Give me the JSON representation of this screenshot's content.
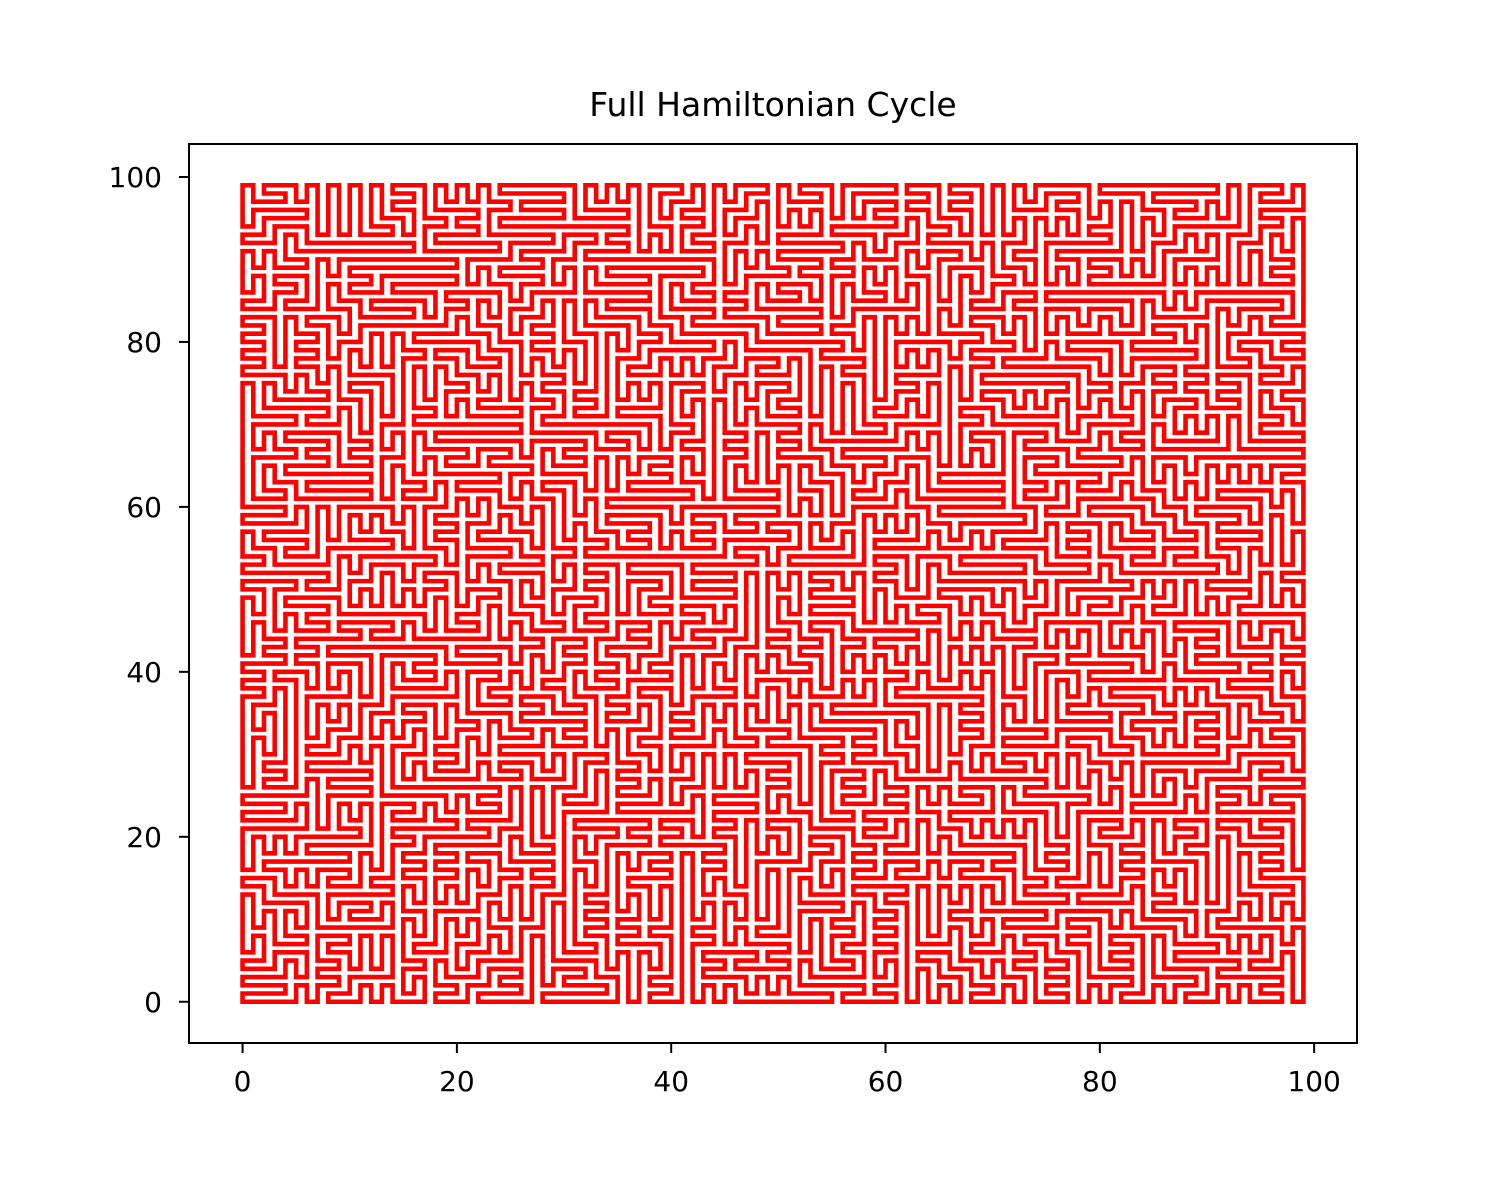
{
  "chart_data": {
    "type": "line",
    "title": "Full Hamiltonian Cycle",
    "xlabel": "",
    "ylabel": "",
    "grid_size": [
      100,
      100
    ],
    "xlim": [
      -5,
      104
    ],
    "ylim": [
      -5,
      104
    ],
    "xticks": [
      0,
      20,
      40,
      60,
      80,
      100
    ],
    "yticks": [
      0,
      20,
      40,
      60,
      80,
      100
    ],
    "xtick_labels": [
      "0",
      "20",
      "40",
      "60",
      "80",
      "100"
    ],
    "ytick_labels": [
      "0",
      "20",
      "40",
      "60",
      "80",
      "100"
    ],
    "series": [
      {
        "color": "#ff0000",
        "x_range": [
          0,
          99
        ],
        "y_range": [
          0,
          99
        ],
        "closed": true
      }
    ],
    "grid": false,
    "legend": false
  }
}
